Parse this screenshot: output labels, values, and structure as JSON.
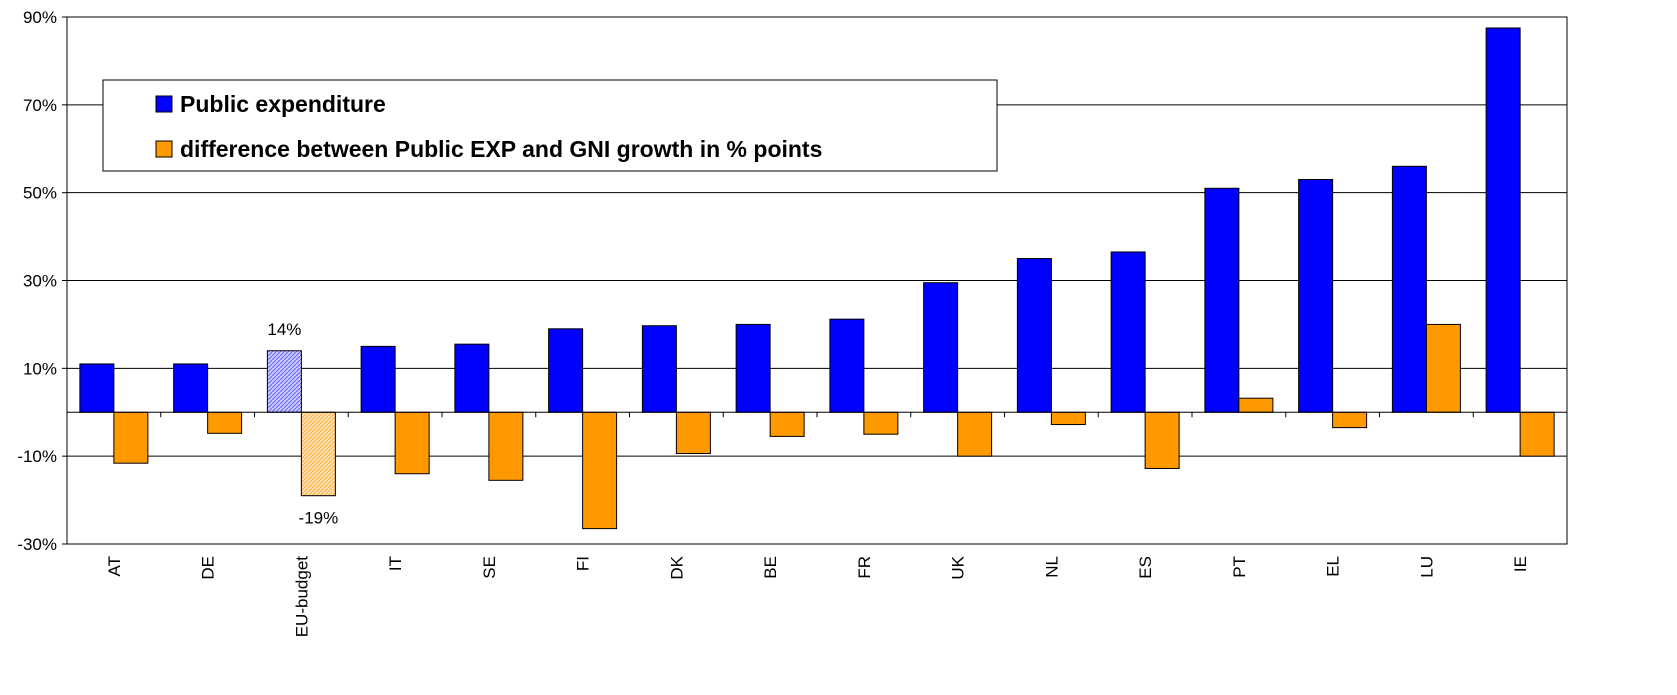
{
  "chart_data": {
    "type": "bar",
    "categories": [
      "AT",
      "DE",
      "EU-budget",
      "IT",
      "SE",
      "FI",
      "DK",
      "BE",
      "FR",
      "UK",
      "NL",
      "ES",
      "PT",
      "EL",
      "LU",
      "IE"
    ],
    "series": [
      {
        "name": "Public expenditure",
        "color": "#0000ff",
        "values": [
          11,
          11,
          14,
          15,
          15.5,
          19,
          19.7,
          20,
          21.2,
          29.5,
          35,
          36.5,
          51,
          53,
          56,
          87.5
        ],
        "value_labels": [
          null,
          null,
          "14%",
          null,
          null,
          null,
          null,
          null,
          null,
          null,
          null,
          null,
          null,
          null,
          null,
          null
        ]
      },
      {
        "name": "difference between Public EXP and GNI growth in % points",
        "color": "#ff9900",
        "values": [
          -11.6,
          -4.8,
          -19,
          -14,
          -15.5,
          -26.5,
          -9.4,
          -5.5,
          -5,
          -10,
          -2.8,
          -12.8,
          3.2,
          -3.5,
          20,
          -10
        ],
        "value_labels": [
          null,
          null,
          "-19%",
          null,
          null,
          null,
          null,
          null,
          null,
          null,
          null,
          null,
          null,
          null,
          null,
          null
        ]
      }
    ],
    "hatched_index": 2,
    "ylim": [
      -30,
      90
    ],
    "yticks": [
      {
        "value": -30,
        "label": "-30%"
      },
      {
        "value": -10,
        "label": "-10%"
      },
      {
        "value": 10,
        "label": "10%"
      },
      {
        "value": 30,
        "label": "30%"
      },
      {
        "value": 50,
        "label": "50%"
      },
      {
        "value": 70,
        "label": "70%"
      },
      {
        "value": 90,
        "label": "90%"
      }
    ],
    "grid": true
  }
}
